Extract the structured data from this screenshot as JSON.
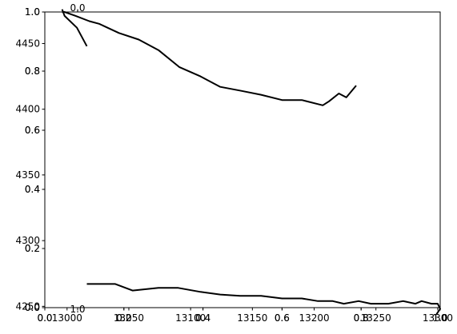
{
  "chart_data": {
    "type": "line",
    "title": "",
    "xlabel": "",
    "ylabel": "",
    "grid": false,
    "layers": [
      {
        "name": "base",
        "xlim": [
          0.0,
          1.0
        ],
        "ylim": [
          0.0,
          1.0
        ],
        "x_ticks": [
          "0.0",
          "0.2",
          "0.4",
          "0.6",
          "0.8",
          "1.0"
        ],
        "y_ticks": [
          "0.0",
          "0.2",
          "0.4",
          "0.6",
          "0.8",
          "1.0"
        ]
      },
      {
        "name": "twin-a",
        "xlim": [
          0.0,
          1.0
        ],
        "ylim": [
          0.0,
          1.0
        ],
        "x_ticks": [
          "0.0",
          "0.2",
          "0.4",
          "0.6",
          "0.8",
          "1.0"
        ],
        "y_ticks": [
          "0.0",
          "0.2",
          "0.4",
          "0.6",
          "0.8",
          "1.0"
        ]
      },
      {
        "name": "data-axes",
        "xlim": [
          12982,
          13302
        ],
        "ylim": [
          4249,
          4474
        ],
        "x_ticks": [
          13000,
          13050,
          13100,
          13150,
          13200,
          13250,
          13300
        ],
        "y_ticks": [
          4250,
          4300,
          4350,
          4400,
          4450
        ],
        "top_ticks": [
          "0.0"
        ],
        "bottom_extra_ticks": [
          "1.0"
        ]
      }
    ],
    "series": [
      {
        "x": [
          12996,
          12998,
          13007,
          13018,
          13026,
          13042,
          13058,
          13074,
          13091,
          13108,
          13124,
          13141,
          13157,
          13174,
          13190,
          13207,
          13212,
          13220,
          13226,
          13234
        ],
        "y": [
          4474,
          4474,
          4471,
          4467,
          4465,
          4458,
          4453,
          4445,
          4432,
          4425,
          4417,
          4414,
          4411,
          4407,
          4407,
          4403,
          4406,
          4412,
          4409,
          4418
        ]
      },
      {
        "x": [
          12996,
          12998,
          13008,
          13016
        ],
        "y": [
          4476,
          4471,
          4462,
          4448
        ]
      },
      {
        "x": [
          13016,
          13039,
          13053,
          13074,
          13090,
          13108,
          13124,
          13140,
          13157,
          13174,
          13190,
          13203,
          13215,
          13224,
          13236,
          13246,
          13260,
          13272,
          13282,
          13287,
          13295,
          13300,
          13302,
          13299
        ],
        "y": [
          4267,
          4267,
          4262,
          4264,
          4264,
          4261,
          4259,
          4258,
          4258,
          4256,
          4256,
          4254,
          4254,
          4252,
          4254,
          4252,
          4252,
          4254,
          4252,
          4254,
          4252,
          4252,
          4248,
          4244
        ]
      }
    ]
  }
}
